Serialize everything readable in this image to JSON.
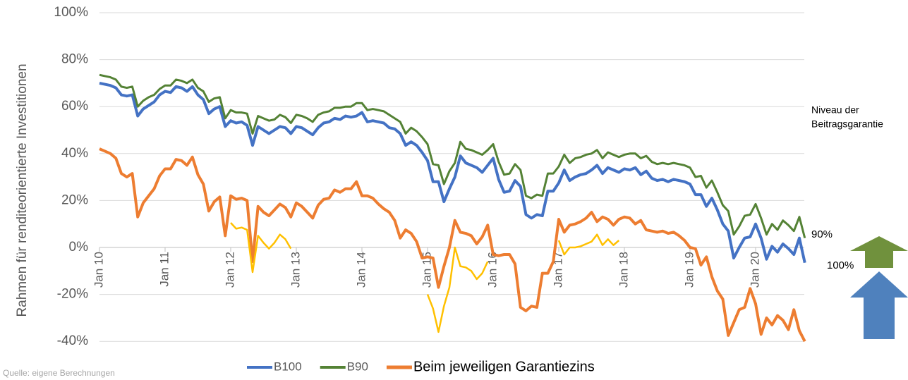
{
  "chart_data": {
    "type": "line",
    "y_label": "Rahmen für renditeorientierte Investitionen",
    "source": "Quelle: eigene Berechnungen",
    "annotations": {
      "guarantee_level": [
        "Niveau der",
        "Beitragsgarantie"
      ],
      "b90": "90%",
      "b100": "100%"
    },
    "categories": [
      "Jan 10",
      null,
      null,
      null,
      null,
      null,
      null,
      null,
      null,
      null,
      null,
      null,
      "Jan 11",
      null,
      null,
      null,
      null,
      null,
      null,
      null,
      null,
      null,
      null,
      null,
      "Jan 12",
      null,
      null,
      null,
      null,
      null,
      null,
      null,
      null,
      null,
      null,
      null,
      "Jan 13",
      null,
      null,
      null,
      null,
      null,
      null,
      null,
      null,
      null,
      null,
      null,
      "Jan 14",
      null,
      null,
      null,
      null,
      null,
      null,
      null,
      null,
      null,
      null,
      null,
      "Jan 15",
      null,
      null,
      null,
      null,
      null,
      null,
      null,
      null,
      null,
      null,
      null,
      "Jan 16",
      null,
      null,
      null,
      null,
      null,
      null,
      null,
      null,
      null,
      null,
      null,
      "Jan 17",
      null,
      null,
      null,
      null,
      null,
      null,
      null,
      null,
      null,
      null,
      null,
      "Jan 18",
      null,
      null,
      null,
      null,
      null,
      null,
      null,
      null,
      null,
      null,
      null,
      "Jan 19",
      null,
      null,
      null,
      null,
      null,
      null,
      null,
      null,
      null,
      null,
      null,
      "Jan 20",
      null,
      null,
      null,
      null,
      null,
      null,
      null,
      null,
      null
    ],
    "ylim": [
      -45,
      100
    ],
    "yticks": [
      {
        "value": -40,
        "label": "-40%"
      },
      {
        "value": -20,
        "label": "-20%"
      },
      {
        "value": 0,
        "label": "0%"
      },
      {
        "value": 20,
        "label": "20%"
      },
      {
        "value": 40,
        "label": "40%"
      },
      {
        "value": 60,
        "label": "60%"
      },
      {
        "value": 80,
        "label": "80%"
      },
      {
        "value": 100,
        "label": "100%"
      }
    ],
    "grid": true,
    "legend": "bottom",
    "series": [
      {
        "name": "B100",
        "color": "#4472c4",
        "values": [
          70,
          69.5,
          69,
          68,
          65,
          64.5,
          65,
          56,
          59,
          60.5,
          62,
          65,
          66.5,
          66,
          68.5,
          68,
          66.5,
          68.5,
          65,
          63,
          57,
          59,
          60,
          51.5,
          54,
          53,
          53.5,
          52,
          43.5,
          51.5,
          50,
          48.5,
          50,
          51.5,
          51,
          48.5,
          51.5,
          51,
          49.5,
          48,
          51,
          53,
          53.5,
          55,
          54.5,
          56,
          55.5,
          56,
          57.5,
          53.5,
          54,
          53.5,
          53,
          51,
          50.5,
          48.5,
          43.5,
          45,
          43.5,
          40.5,
          37,
          28,
          28,
          19.5,
          25,
          30,
          39,
          36,
          35,
          34,
          32,
          35,
          38,
          29,
          23.5,
          24,
          28.5,
          26,
          14,
          12.5,
          14,
          13.5,
          24,
          24,
          27.5,
          33,
          28.5,
          30,
          31,
          31.5,
          33,
          35,
          31.5,
          34,
          33,
          32,
          33.5,
          33,
          34,
          31,
          32.5,
          29.5,
          28.5,
          29,
          28,
          29,
          28.5,
          28,
          27,
          22.5,
          22.5,
          17.5,
          21,
          16,
          10,
          7,
          -4.5,
          0,
          4,
          4.5,
          10,
          4,
          -5,
          0.5,
          -2,
          1.5,
          -0.5,
          -3,
          4,
          -6.5
        ]
      },
      {
        "name": "B90",
        "color": "#548235",
        "values": [
          73.5,
          73,
          72.5,
          71.5,
          68.5,
          68,
          68.5,
          60,
          62.5,
          64,
          65,
          67.5,
          69,
          69,
          71.5,
          71,
          70,
          71.5,
          68,
          66.5,
          62,
          63.5,
          64,
          55,
          58.5,
          57.5,
          57.5,
          57,
          48.5,
          56,
          55,
          54,
          54.5,
          56.5,
          55.5,
          53,
          56.5,
          56,
          55,
          53.5,
          56.5,
          57.5,
          58,
          59.5,
          59.5,
          60,
          60,
          61.5,
          61.5,
          58.5,
          59,
          58.5,
          58,
          56.5,
          55,
          53.5,
          48.5,
          51,
          49.5,
          47,
          44,
          35.5,
          35,
          27,
          32.5,
          36,
          45,
          42,
          41.5,
          40.5,
          39.5,
          41.5,
          44,
          36.5,
          31,
          31.5,
          35.5,
          33,
          22,
          21,
          22.5,
          22,
          31.5,
          31.5,
          34.5,
          39.5,
          36,
          38,
          38.5,
          39.5,
          40,
          41.5,
          38,
          40.5,
          39.5,
          38.5,
          39.5,
          40,
          40,
          38,
          39,
          36.5,
          35.5,
          36,
          35.5,
          36,
          35.5,
          35,
          34,
          30,
          30.5,
          25.5,
          28.5,
          23.5,
          18,
          15.5,
          5.5,
          9,
          13.5,
          14,
          18.5,
          12.5,
          5.5,
          10,
          7.5,
          11.5,
          9.5,
          7,
          13,
          4
        ]
      },
      {
        "name": "Beim jeweiligen Garantiezins",
        "color": "#ed7d31",
        "values": [
          42,
          41,
          40,
          38,
          31.5,
          30,
          31.5,
          13,
          19,
          22,
          25,
          30.5,
          33.5,
          33.5,
          37.5,
          37,
          35,
          38.5,
          31,
          27,
          15.5,
          19.5,
          21.5,
          5,
          22,
          20.5,
          21,
          20,
          -6,
          17.5,
          15,
          13.5,
          16,
          18.5,
          17,
          13,
          19,
          17.5,
          15,
          12.5,
          18,
          20.5,
          21,
          24.5,
          23.5,
          25,
          25,
          28,
          22,
          22,
          21,
          18.5,
          16.5,
          15,
          11.5,
          4,
          7.5,
          6,
          2.5,
          -4.5,
          -4,
          -4.5,
          -17,
          -8,
          0,
          11.5,
          6.5,
          6,
          5,
          1.5,
          4.5,
          9.5,
          -3,
          -3.5,
          -3,
          -3,
          -7,
          -25.5,
          -27,
          -25,
          -25.5,
          -11,
          -11,
          -6,
          12,
          6.5,
          9.5,
          10,
          11,
          12.5,
          15,
          11,
          13,
          12,
          9.5,
          12,
          13,
          12.5,
          10,
          11.5,
          7.5,
          7,
          6.5,
          7,
          6,
          6.5,
          5,
          3,
          0,
          -0.5,
          -7.5,
          -4,
          -12.5,
          -18.5,
          -22,
          -37.5,
          -32,
          -26.5,
          -25.5,
          -17.5,
          -24,
          -37,
          -30,
          -33,
          -29,
          -31,
          -35,
          -26.5,
          -35.5,
          -40
        ]
      },
      {
        "color": "#ffc000",
        "values": [
          null,
          null,
          null,
          null,
          null,
          null,
          null,
          null,
          null,
          null,
          null,
          null,
          null,
          null,
          null,
          null,
          null,
          null,
          null,
          null,
          null,
          null,
          null,
          null,
          10.5,
          8,
          8.5,
          7.5,
          -10.5,
          5,
          2,
          -0.5,
          2,
          5.5,
          3.5,
          -0.5,
          null,
          null,
          null,
          null,
          null,
          null,
          null,
          null,
          null,
          null,
          null,
          null,
          null,
          null,
          null,
          null,
          null,
          null,
          null,
          null,
          null,
          null,
          null,
          null,
          -20,
          -26,
          -36,
          -25,
          -17,
          0,
          -8,
          -8.5,
          -10,
          -13.5,
          -11,
          -6,
          null,
          null,
          null,
          null,
          null,
          null,
          null,
          null,
          null,
          null,
          null,
          null,
          3,
          -3,
          0,
          0,
          0.5,
          1.5,
          2.5,
          5.5,
          1,
          3.5,
          1,
          3,
          null,
          null,
          null,
          null,
          null,
          null,
          null,
          null,
          null,
          null,
          null,
          null,
          null,
          null,
          null,
          null,
          null,
          null,
          null,
          null,
          null,
          null,
          null,
          null,
          null,
          null,
          null,
          null,
          null,
          null,
          null,
          null,
          null,
          null
        ]
      }
    ]
  }
}
